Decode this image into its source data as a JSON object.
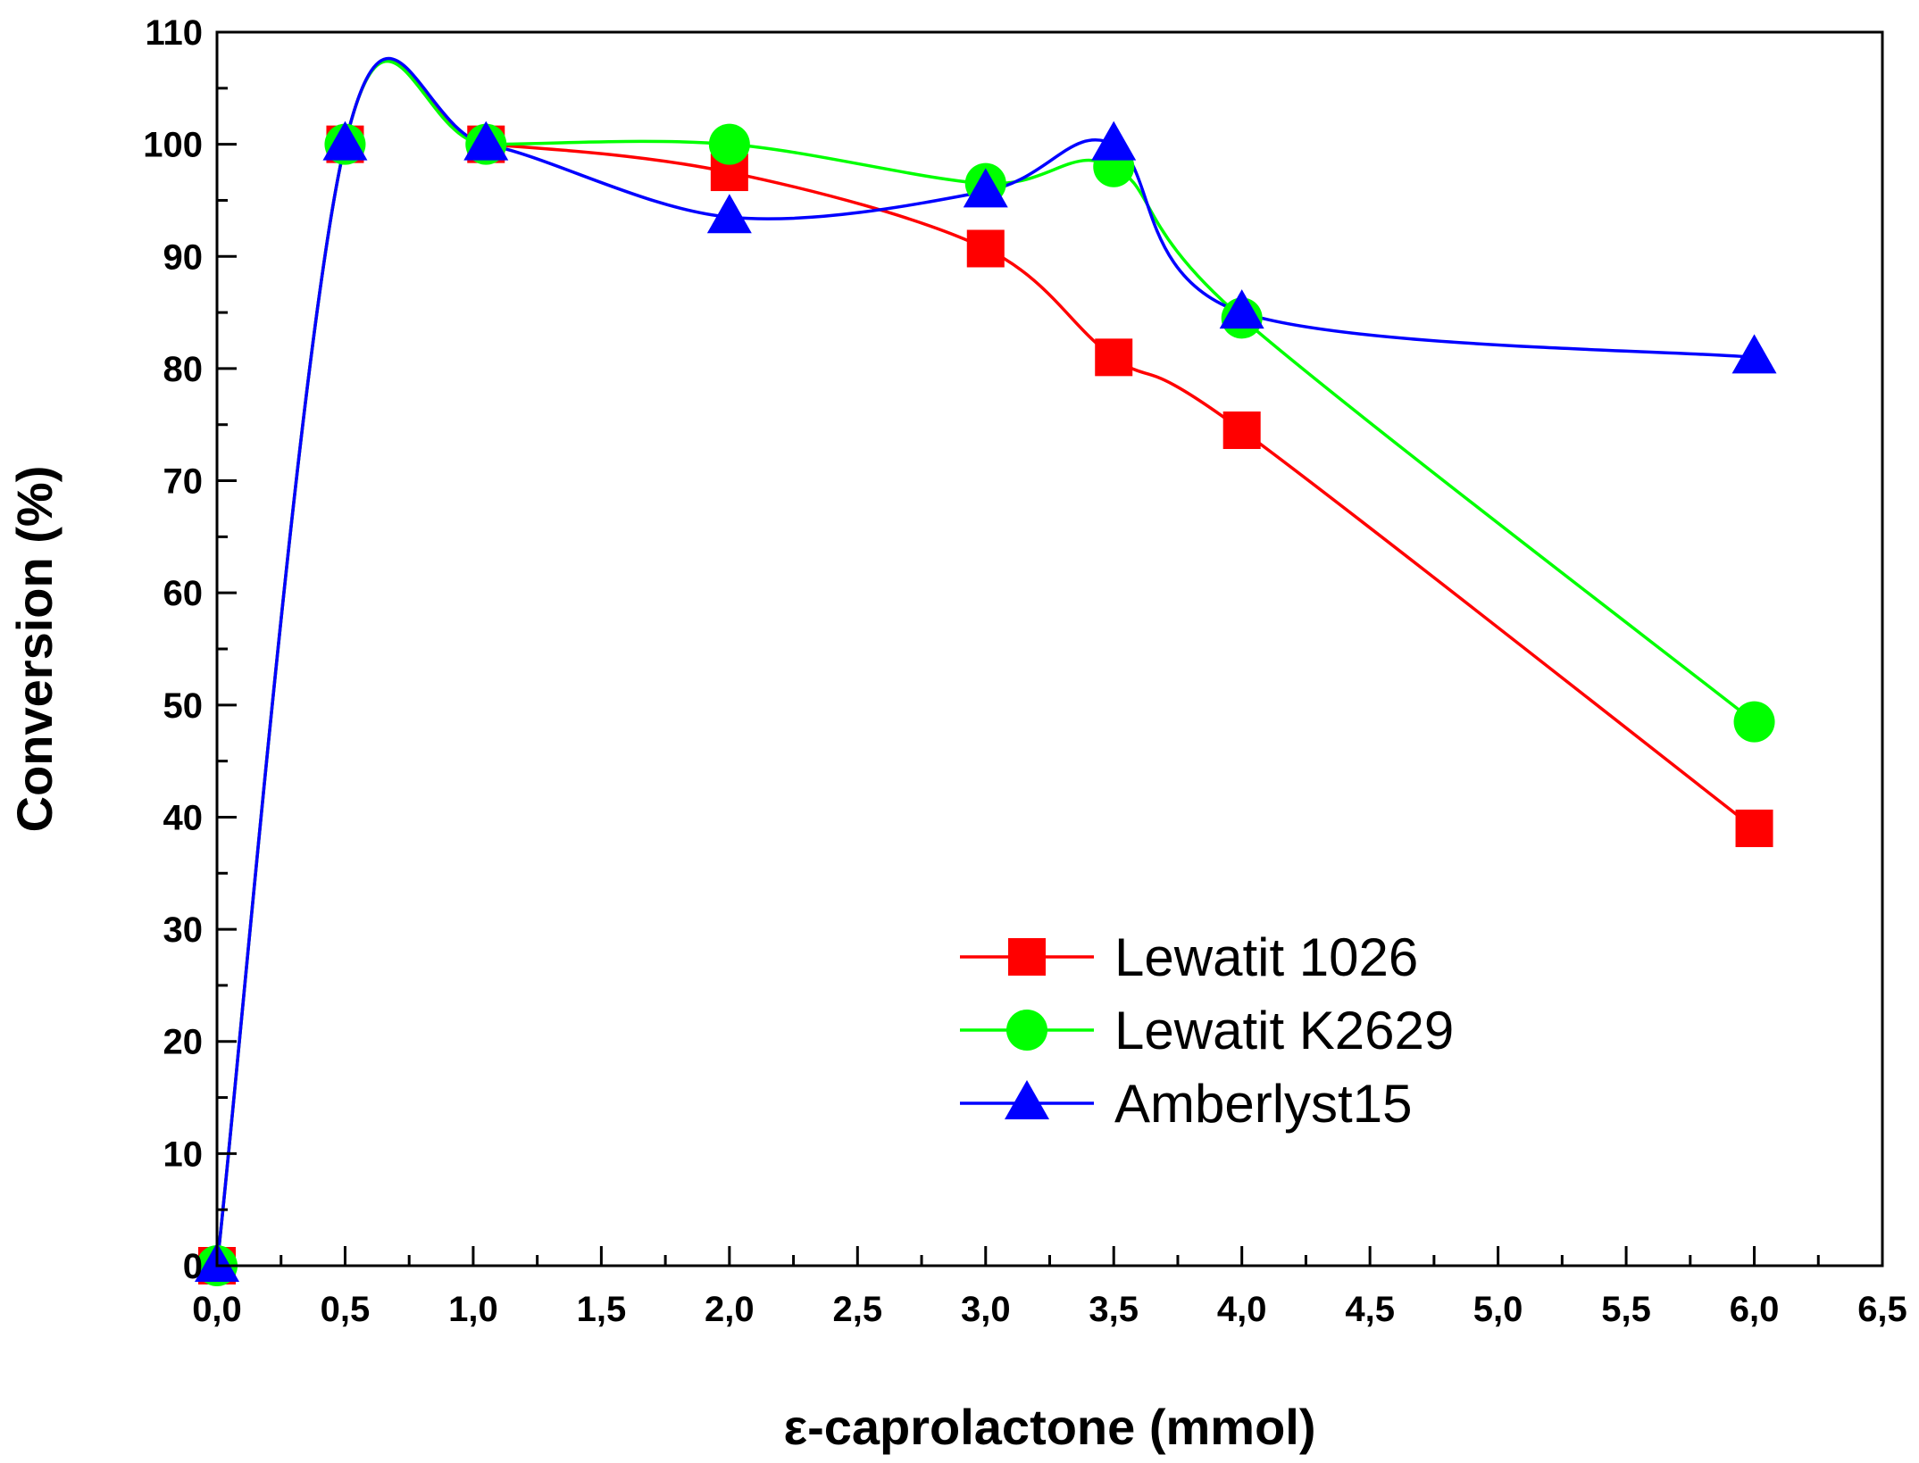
{
  "chart_data": {
    "type": "line",
    "title": "",
    "xlabel": "ε-caprolactone (mmol)",
    "ylabel": "Conversion (%)",
    "xlim": [
      0,
      6.5
    ],
    "ylim": [
      0,
      110
    ],
    "xticks": [
      0,
      0.5,
      1.0,
      1.5,
      2.0,
      2.5,
      3.0,
      3.5,
      4.0,
      4.5,
      5.0,
      5.5,
      6.0,
      6.5
    ],
    "xtick_labels": [
      "0,0",
      "0,5",
      "1,0",
      "1,5",
      "2,0",
      "2,5",
      "3,0",
      "3,5",
      "4,0",
      "4,5",
      "5,0",
      "5,5",
      "6,0",
      "6,5"
    ],
    "yticks": [
      0,
      10,
      20,
      30,
      40,
      50,
      60,
      70,
      80,
      90,
      100,
      110
    ],
    "ytick_labels": [
      "0",
      "10",
      "20",
      "30",
      "40",
      "50",
      "60",
      "70",
      "80",
      "90",
      "100",
      "110"
    ],
    "grid": false,
    "legend_position": "center-right",
    "series": [
      {
        "name": "Lewatit 1026",
        "color": "#ff0000",
        "marker": "square",
        "x": [
          0,
          0.5,
          1.05,
          2.0,
          3.0,
          3.5,
          4.0,
          6.0
        ],
        "y": [
          0,
          100,
          100,
          97.5,
          90.7,
          81,
          74.5,
          39
        ]
      },
      {
        "name": "Lewatit K2629",
        "color": "#00ff00",
        "marker": "circle",
        "x": [
          0,
          0.5,
          1.05,
          2.0,
          3.0,
          3.5,
          4.0,
          6.0
        ],
        "y": [
          0,
          100,
          100,
          100,
          96.5,
          98,
          84.5,
          48.5
        ]
      },
      {
        "name": "Amberlyst15",
        "color": "#0000ff",
        "marker": "triangle",
        "x": [
          0,
          0.5,
          1.05,
          2.0,
          3.0,
          3.5,
          4.0,
          6.0
        ],
        "y": [
          0,
          100,
          100,
          93.5,
          95.8,
          100,
          85,
          81
        ]
      }
    ]
  }
}
